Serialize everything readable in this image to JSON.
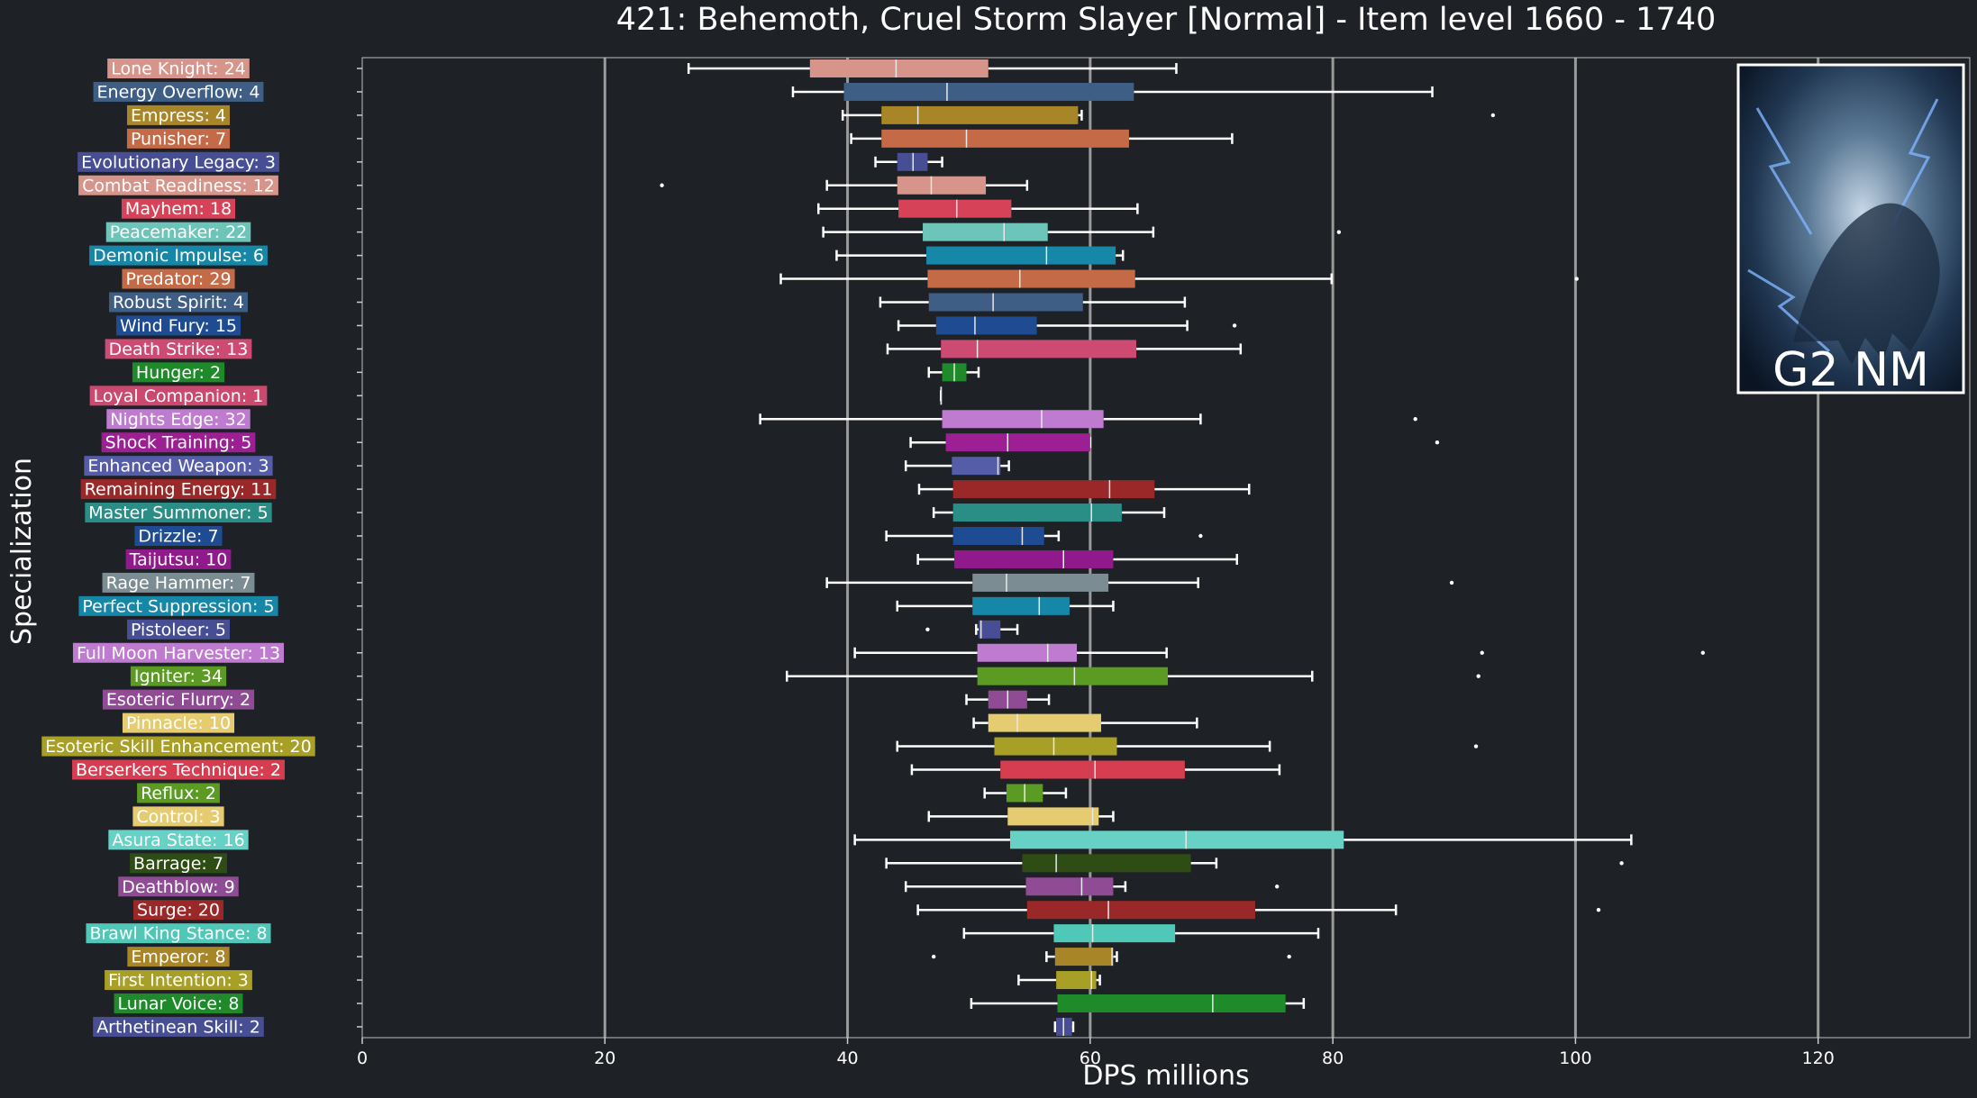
{
  "chart_data": {
    "type": "box",
    "orientation": "horizontal",
    "title": "421: Behemoth, Cruel Storm Slayer [Normal] - Item level 1660 - 1740",
    "xlabel": "DPS millions",
    "ylabel": "Specialization",
    "xlim": [
      0,
      132.5
    ],
    "xticks": [
      0,
      20,
      40,
      60,
      80,
      100,
      120
    ],
    "grid": "vertical",
    "inset_image": {
      "caption": "G2 NM",
      "position": "top-right"
    },
    "series": [
      {
        "label": "Lone Knight: 24",
        "color": "#d6948a",
        "whisker_low": 26.9,
        "q1": 36.9,
        "median": 44.0,
        "q3": 51.6,
        "whisker_high": 67.1,
        "outliers": []
      },
      {
        "label": "Energy Overflow: 4",
        "color": "#3f5e86",
        "whisker_low": 35.5,
        "q1": 39.7,
        "median": 48.2,
        "q3": 63.6,
        "whisker_high": 88.2,
        "outliers": []
      },
      {
        "label": "Empress: 4",
        "color": "#a88526",
        "whisker_low": 39.6,
        "q1": 42.8,
        "median": 45.8,
        "q3": 59.0,
        "whisker_high": 59.3,
        "outliers": [
          93.2
        ]
      },
      {
        "label": "Punisher: 7",
        "color": "#c56a46",
        "whisker_low": 40.3,
        "q1": 42.8,
        "median": 49.8,
        "q3": 63.2,
        "whisker_high": 71.7,
        "outliers": []
      },
      {
        "label": "Evolutionary Legacy: 3",
        "color": "#484e94",
        "whisker_low": 42.3,
        "q1": 44.1,
        "median": 45.4,
        "q3": 46.6,
        "whisker_high": 47.8,
        "outliers": []
      },
      {
        "label": "Combat Readiness: 12",
        "color": "#d6948a",
        "whisker_low": 38.3,
        "q1": 44.1,
        "median": 46.9,
        "q3": 51.4,
        "whisker_high": 54.8,
        "outliers": [
          24.7
        ]
      },
      {
        "label": "Mayhem: 18",
        "color": "#d64257",
        "whisker_low": 37.6,
        "q1": 44.2,
        "median": 49.0,
        "q3": 53.5,
        "whisker_high": 63.9,
        "outliers": []
      },
      {
        "label": "Peacemaker: 22",
        "color": "#6cc5b8",
        "whisker_low": 38.0,
        "q1": 46.2,
        "median": 52.9,
        "q3": 56.5,
        "whisker_high": 65.2,
        "outliers": [
          80.5
        ]
      },
      {
        "label": "Demonic Impulse: 6",
        "color": "#1787a8",
        "whisker_low": 39.1,
        "q1": 46.5,
        "median": 56.4,
        "q3": 62.1,
        "whisker_high": 62.7,
        "outliers": []
      },
      {
        "label": "Predator: 29",
        "color": "#c56a46",
        "whisker_low": 34.5,
        "q1": 46.6,
        "median": 54.2,
        "q3": 63.7,
        "whisker_high": 79.9,
        "outliers": [
          100.1
        ]
      },
      {
        "label": "Robust Spirit: 4",
        "color": "#3f5e86",
        "whisker_low": 42.7,
        "q1": 46.7,
        "median": 52.0,
        "q3": 59.4,
        "whisker_high": 67.8,
        "outliers": []
      },
      {
        "label": "Wind Fury: 15",
        "color": "#1e4b92",
        "whisker_low": 44.2,
        "q1": 47.3,
        "median": 50.5,
        "q3": 55.6,
        "whisker_high": 68.0,
        "outliers": [
          71.9
        ]
      },
      {
        "label": "Death Strike: 13",
        "color": "#cd4a72",
        "whisker_low": 43.3,
        "q1": 47.7,
        "median": 50.7,
        "q3": 63.8,
        "whisker_high": 72.4,
        "outliers": []
      },
      {
        "label": "Hunger: 2",
        "color": "#1f8a2a",
        "whisker_low": 46.7,
        "q1": 47.8,
        "median": 48.8,
        "q3": 49.8,
        "whisker_high": 50.8,
        "outliers": []
      },
      {
        "label": "Loyal Companion: 1",
        "color": "#c94a6e",
        "whisker_low": 47.7,
        "q1": 47.7,
        "median": 47.7,
        "q3": 47.7,
        "whisker_high": 47.7,
        "outliers": []
      },
      {
        "label": "Nights Edge: 32",
        "color": "#bf7bd0",
        "whisker_low": 32.8,
        "q1": 47.8,
        "median": 56.0,
        "q3": 61.1,
        "whisker_high": 69.1,
        "outliers": [
          86.8
        ]
      },
      {
        "label": "Shock Training: 5",
        "color": "#9c2094",
        "whisker_low": 45.2,
        "q1": 48.1,
        "median": 53.2,
        "q3": 60.0,
        "whisker_high": 60.0,
        "outliers": [
          88.6
        ]
      },
      {
        "label": "Enhanced Weapon: 3",
        "color": "#555ca8",
        "whisker_low": 44.8,
        "q1": 48.6,
        "median": 52.4,
        "q3": 52.6,
        "whisker_high": 53.3,
        "outliers": []
      },
      {
        "label": "Remaining Energy: 11",
        "color": "#9a2828",
        "whisker_low": 45.9,
        "q1": 48.7,
        "median": 61.6,
        "q3": 65.3,
        "whisker_high": 73.1,
        "outliers": []
      },
      {
        "label": "Master Summoner: 5",
        "color": "#2a8e86",
        "whisker_low": 47.1,
        "q1": 48.7,
        "median": 60.1,
        "q3": 62.6,
        "whisker_high": 66.1,
        "outliers": []
      },
      {
        "label": "Drizzle: 7",
        "color": "#1e4b92",
        "whisker_low": 43.2,
        "q1": 48.7,
        "median": 54.4,
        "q3": 56.2,
        "whisker_high": 57.4,
        "outliers": [
          69.1
        ]
      },
      {
        "label": "Taijutsu: 10",
        "color": "#901a8c",
        "whisker_low": 45.8,
        "q1": 48.8,
        "median": 57.8,
        "q3": 61.9,
        "whisker_high": 72.1,
        "outliers": []
      },
      {
        "label": "Rage Hammer: 7",
        "color": "#7b8d93",
        "whisker_low": 38.3,
        "q1": 50.3,
        "median": 53.1,
        "q3": 61.5,
        "whisker_high": 68.9,
        "outliers": [
          89.8
        ]
      },
      {
        "label": "Perfect Suppression: 5",
        "color": "#1787a8",
        "whisker_low": 44.1,
        "q1": 50.3,
        "median": 55.8,
        "q3": 58.3,
        "whisker_high": 61.9,
        "outliers": []
      },
      {
        "label": "Pistoleer: 5",
        "color": "#484e94",
        "whisker_low": 50.6,
        "q1": 50.8,
        "median": 51.0,
        "q3": 52.6,
        "whisker_high": 54.0,
        "outliers": [
          46.6
        ]
      },
      {
        "label": "Full Moon Harvester: 13",
        "color": "#bf7bd0",
        "whisker_low": 40.6,
        "q1": 50.7,
        "median": 56.5,
        "q3": 58.9,
        "whisker_high": 66.3,
        "outliers": [
          92.3,
          110.5
        ]
      },
      {
        "label": "Igniter: 34",
        "color": "#5c9b23",
        "whisker_low": 35.0,
        "q1": 50.7,
        "median": 58.7,
        "q3": 66.4,
        "whisker_high": 78.3,
        "outliers": [
          92.0
        ]
      },
      {
        "label": "Esoteric Flurry: 2",
        "color": "#8f4b94",
        "whisker_low": 49.8,
        "q1": 51.6,
        "median": 53.2,
        "q3": 54.8,
        "whisker_high": 56.6,
        "outliers": []
      },
      {
        "label": "Pinnacle: 10",
        "color": "#e6cc70",
        "whisker_low": 50.4,
        "q1": 51.6,
        "median": 54.0,
        "q3": 60.9,
        "whisker_high": 68.8,
        "outliers": []
      },
      {
        "label": "Esoteric Skill Enhancement: 20",
        "color": "#a8a026",
        "whisker_low": 44.1,
        "q1": 52.1,
        "median": 57.0,
        "q3": 62.2,
        "whisker_high": 74.8,
        "outliers": [
          91.8
        ]
      },
      {
        "label": "Berserkers Technique: 2",
        "color": "#d63d50",
        "whisker_low": 45.3,
        "q1": 52.6,
        "median": 60.4,
        "q3": 67.8,
        "whisker_high": 75.6,
        "outliers": []
      },
      {
        "label": "Reflux: 2",
        "color": "#5c9b23",
        "whisker_low": 51.3,
        "q1": 53.1,
        "median": 54.6,
        "q3": 56.1,
        "whisker_high": 58.0,
        "outliers": []
      },
      {
        "label": "Control: 3",
        "color": "#e6cc70",
        "whisker_low": 46.7,
        "q1": 53.2,
        "median": 60.2,
        "q3": 60.7,
        "whisker_high": 61.9,
        "outliers": []
      },
      {
        "label": "Asura State: 16",
        "color": "#66d1c4",
        "whisker_low": 40.6,
        "q1": 53.4,
        "median": 67.9,
        "q3": 80.9,
        "whisker_high": 104.6,
        "outliers": []
      },
      {
        "label": "Barrage: 7",
        "color": "#2d4d14",
        "whisker_low": 43.2,
        "q1": 54.4,
        "median": 57.2,
        "q3": 68.3,
        "whisker_high": 70.4,
        "outliers": [
          103.8
        ]
      },
      {
        "label": "Deathblow: 9",
        "color": "#8f4b94",
        "whisker_low": 44.8,
        "q1": 54.7,
        "median": 59.3,
        "q3": 61.9,
        "whisker_high": 62.9,
        "outliers": [
          75.4
        ]
      },
      {
        "label": "Surge: 20",
        "color": "#9a2828",
        "whisker_low": 45.8,
        "q1": 54.8,
        "median": 61.5,
        "q3": 73.6,
        "whisker_high": 85.2,
        "outliers": [
          101.9
        ]
      },
      {
        "label": "Brawl King Stance: 8",
        "color": "#50c8b8",
        "whisker_low": 49.6,
        "q1": 57.0,
        "median": 60.2,
        "q3": 67.0,
        "whisker_high": 78.8,
        "outliers": []
      },
      {
        "label": "Emperor: 8",
        "color": "#a88526",
        "whisker_low": 56.4,
        "q1": 57.1,
        "median": 61.8,
        "q3": 61.9,
        "whisker_high": 62.2,
        "outliers": [
          47.1,
          76.4
        ]
      },
      {
        "label": "First Intention: 3",
        "color": "#a8a026",
        "whisker_low": 54.1,
        "q1": 57.2,
        "median": 60.1,
        "q3": 60.5,
        "whisker_high": 60.8,
        "outliers": []
      },
      {
        "label": "Lunar Voice: 8",
        "color": "#1f8a2a",
        "whisker_low": 50.2,
        "q1": 57.3,
        "median": 70.1,
        "q3": 76.1,
        "whisker_high": 77.6,
        "outliers": []
      },
      {
        "label": "Arthetinean Skill: 2",
        "color": "#484e94",
        "whisker_low": 57.1,
        "q1": 57.2,
        "median": 57.8,
        "q3": 58.5,
        "whisker_high": 58.6,
        "outliers": []
      }
    ]
  }
}
